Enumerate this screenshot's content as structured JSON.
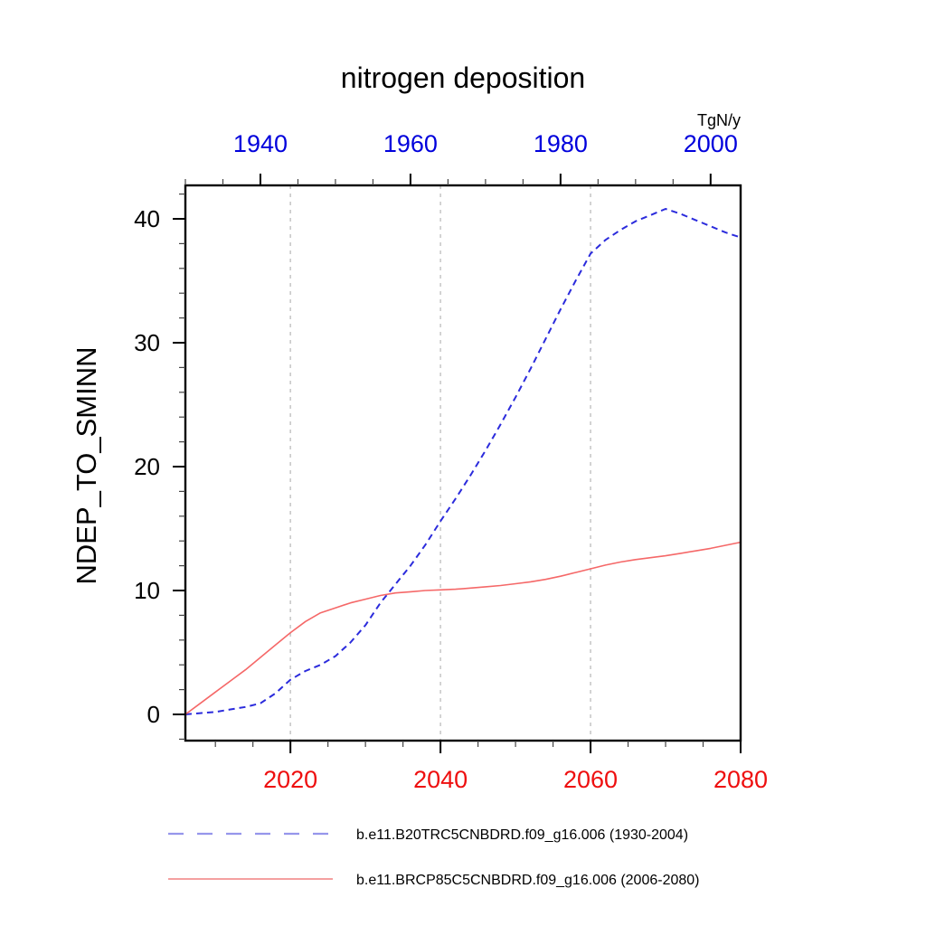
{
  "chart_data": {
    "type": "line",
    "title": "nitrogen deposition",
    "units": "TgN/y",
    "ylabel": "NDEP_TO_SMINN",
    "ylim": [
      -2.2,
      42.7
    ],
    "yticks": [
      0,
      10,
      20,
      30,
      40
    ],
    "y_minor_step": 2,
    "grid": "vertical-dotted",
    "gridline_years_bottom": [
      2020,
      2040,
      2060
    ],
    "top_axis": {
      "range": [
        1930,
        2004
      ],
      "ticks": [
        1940,
        1960,
        1980,
        2000
      ],
      "minor_step": 5,
      "label_color": "#0000dc"
    },
    "bottom_axis": {
      "range": [
        2006,
        2080
      ],
      "ticks": [
        2020,
        2040,
        2060,
        2080
      ],
      "minor_step": 5,
      "label_color": "#ee0f0f"
    },
    "legend_position": "below-plot",
    "series": [
      {
        "name": "b.e11.B20TRC5CNBDRD.f09_g16.006 (1930-2004)",
        "axis": "top",
        "style": "dashed",
        "color": "#2b2bdc",
        "legend_color": "#9696eb",
        "x": [
          1930,
          1932,
          1934,
          1936,
          1938,
          1940,
          1942,
          1944,
          1946,
          1948,
          1950,
          1952,
          1954,
          1956,
          1958,
          1960,
          1962,
          1964,
          1966,
          1968,
          1970,
          1972,
          1974,
          1976,
          1978,
          1980,
          1982,
          1984,
          1986,
          1988,
          1990,
          1992,
          1994,
          1996,
          1998,
          2000,
          2002,
          2004
        ],
        "values": [
          0.0,
          0.1,
          0.2,
          0.4,
          0.6,
          0.9,
          1.7,
          2.8,
          3.5,
          4.0,
          4.7,
          5.8,
          7.2,
          9.0,
          10.5,
          12.0,
          13.7,
          15.6,
          17.4,
          19.3,
          21.3,
          23.4,
          25.6,
          27.9,
          30.3,
          32.7,
          35.0,
          37.2,
          38.3,
          39.1,
          39.8,
          40.3,
          40.8,
          40.4,
          39.9,
          39.4,
          38.9,
          38.5
        ]
      },
      {
        "name": "b.e11.BRCP85C5CNBDRD.f09_g16.006 (2006-2080)",
        "axis": "bottom",
        "style": "solid",
        "color": "#f56868",
        "legend_color": "#f08080",
        "x": [
          2006,
          2008,
          2010,
          2012,
          2014,
          2016,
          2018,
          2020,
          2022,
          2024,
          2026,
          2028,
          2030,
          2032,
          2034,
          2036,
          2038,
          2040,
          2042,
          2044,
          2046,
          2048,
          2050,
          2052,
          2054,
          2056,
          2058,
          2060,
          2062,
          2064,
          2066,
          2068,
          2070,
          2072,
          2074,
          2076,
          2078,
          2080
        ],
        "values": [
          0.0,
          0.9,
          1.8,
          2.7,
          3.6,
          4.6,
          5.6,
          6.6,
          7.5,
          8.2,
          8.6,
          9.0,
          9.3,
          9.6,
          9.8,
          9.9,
          10.0,
          10.05,
          10.1,
          10.2,
          10.3,
          10.4,
          10.55,
          10.7,
          10.9,
          11.15,
          11.45,
          11.75,
          12.05,
          12.3,
          12.5,
          12.65,
          12.8,
          13.0,
          13.2,
          13.4,
          13.65,
          13.9
        ]
      }
    ]
  }
}
